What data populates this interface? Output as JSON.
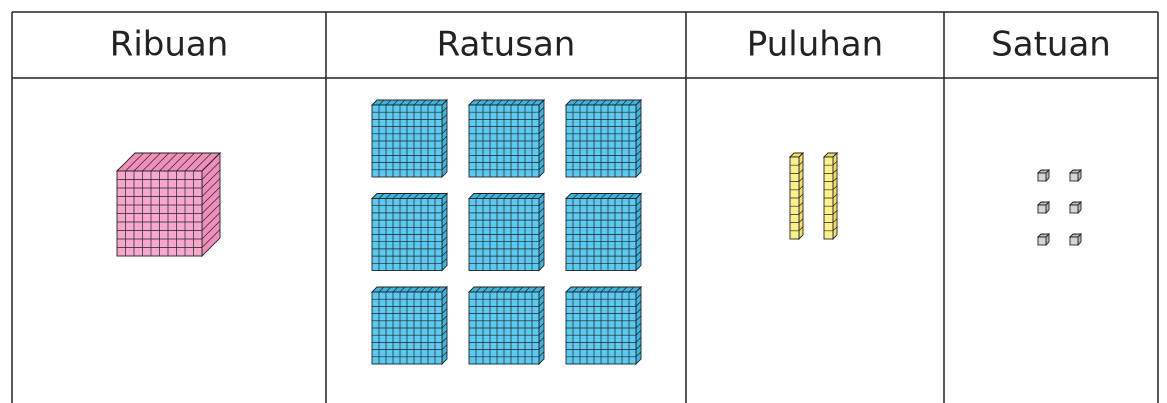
{
  "table": {
    "header": [
      "Ribuan",
      "Ratusan",
      "Puluhan",
      "Satuan"
    ],
    "counts": [
      1,
      9,
      2,
      6
    ]
  }
}
